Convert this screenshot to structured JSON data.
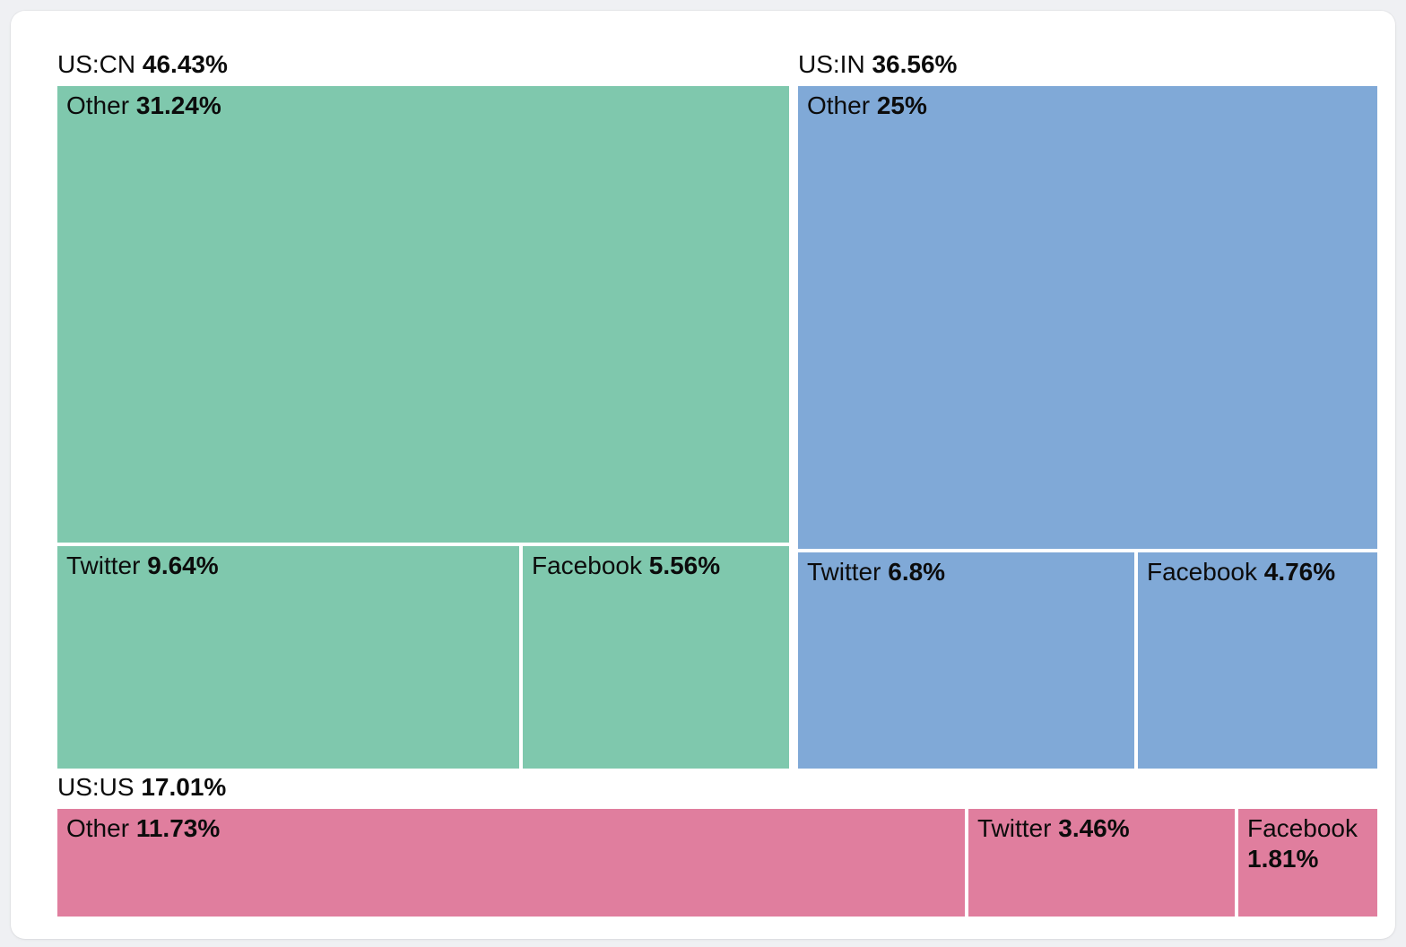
{
  "chart_data": {
    "type": "treemap",
    "description": "Treemap of traffic share split by country pair and destination service",
    "legend_position": "none",
    "groups": [
      {
        "label": "US:CN",
        "display_value": "46.43%",
        "value": 46.43,
        "color": "#7fc8ad",
        "children": [
          {
            "label": "Other",
            "display_value": "31.24%",
            "value": 31.24
          },
          {
            "label": "Twitter",
            "display_value": "9.64%",
            "value": 9.64
          },
          {
            "label": "Facebook",
            "display_value": "5.56%",
            "value": 5.56
          }
        ]
      },
      {
        "label": "US:IN",
        "display_value": "36.56%",
        "value": 36.56,
        "color": "#80a9d7",
        "children": [
          {
            "label": "Other",
            "display_value": "25%",
            "value": 25
          },
          {
            "label": "Twitter",
            "display_value": "6.8%",
            "value": 6.8
          },
          {
            "label": "Facebook",
            "display_value": "4.76%",
            "value": 4.76
          }
        ]
      },
      {
        "label": "US:US",
        "display_value": "17.01%",
        "value": 17.01,
        "color": "#e07e9e",
        "children": [
          {
            "label": "Other",
            "display_value": "11.73%",
            "value": 11.73
          },
          {
            "label": "Twitter",
            "display_value": "3.46%",
            "value": 3.46
          },
          {
            "label": "Facebook",
            "display_value": "1.81%",
            "value": 1.81
          }
        ]
      }
    ]
  }
}
